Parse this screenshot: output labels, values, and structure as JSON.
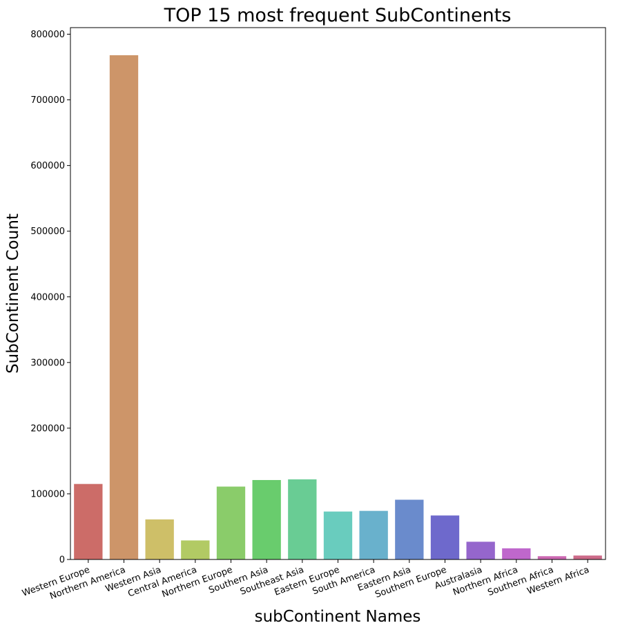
{
  "chart_data": {
    "type": "bar",
    "title": "TOP 15 most frequent SubContinents",
    "xlabel": "subContinent Names",
    "ylabel": "SubContinent Count",
    "ylim": [
      0,
      810000
    ],
    "yticks": [
      0,
      100000,
      200000,
      300000,
      400000,
      500000,
      600000,
      700000,
      800000
    ],
    "grid": false,
    "categories": [
      "Western Europe",
      "Northern America",
      "Western Asia",
      "Central America",
      "Northern Europe",
      "Southern Asia",
      "Southeast Asia",
      "Eastern Europe",
      "South America",
      "Eastern Asia",
      "Southern Europe",
      "Australasia",
      "Northern Africa",
      "Southern Africa",
      "Western Africa"
    ],
    "values": [
      115000,
      768000,
      61000,
      29000,
      111000,
      121000,
      122000,
      73000,
      74000,
      91000,
      67000,
      27000,
      17000,
      5000,
      6000
    ],
    "colors": [
      "#cc6c68",
      "#cd9569",
      "#cebf68",
      "#b2ca64",
      "#8acc6a",
      "#69cc6d",
      "#69cc94",
      "#69ccbe",
      "#69b1cc",
      "#6a8bcc",
      "#6e69cc",
      "#9566cc",
      "#bf67cc",
      "#cc69b2",
      "#cc6a88"
    ]
  }
}
